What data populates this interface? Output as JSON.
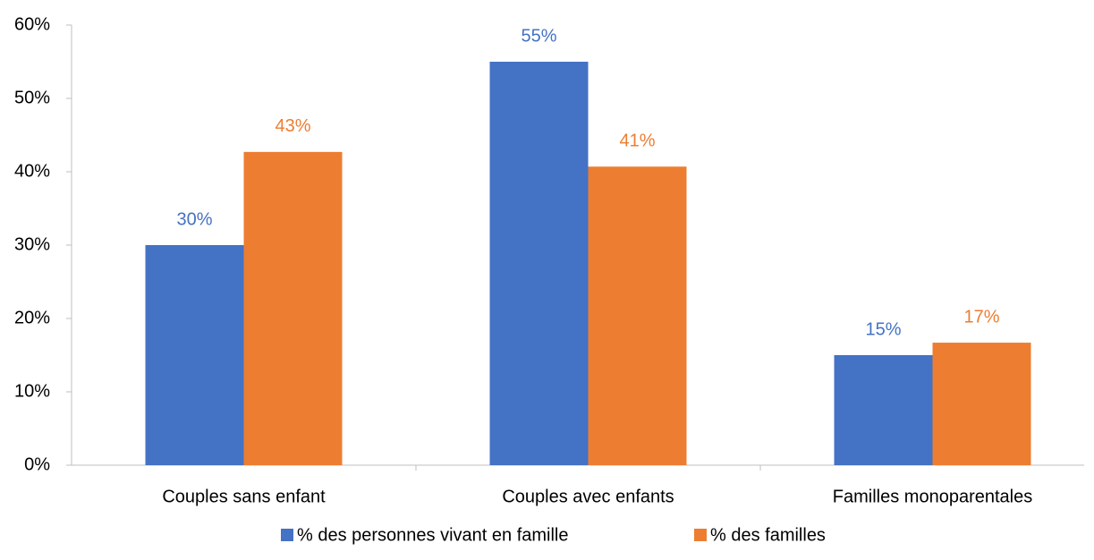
{
  "chart_data": {
    "type": "bar",
    "categories": [
      "Couples sans enfant",
      "Couples avec enfants",
      "Familles monoparentales"
    ],
    "series": [
      {
        "name": "% des personnes vivant en famille",
        "color": "#4472c4",
        "values": [
          30,
          55,
          15
        ],
        "value_labels": [
          "30%",
          "55%",
          "15%"
        ]
      },
      {
        "name": "% des familles",
        "color": "#ed7d31",
        "values": [
          42.7,
          40.7,
          16.7
        ],
        "value_labels": [
          "43%",
          "41%",
          "17%"
        ]
      }
    ],
    "ylim": [
      0,
      60
    ],
    "yticks": [
      {
        "value": 0,
        "label": "0%"
      },
      {
        "value": 10,
        "label": "10%"
      },
      {
        "value": 20,
        "label": "20%"
      },
      {
        "value": 30,
        "label": "30%"
      },
      {
        "value": 40,
        "label": "40%"
      },
      {
        "value": 50,
        "label": "50%"
      },
      {
        "value": 60,
        "label": "60%"
      }
    ],
    "grid": false,
    "legend": "bottom"
  }
}
